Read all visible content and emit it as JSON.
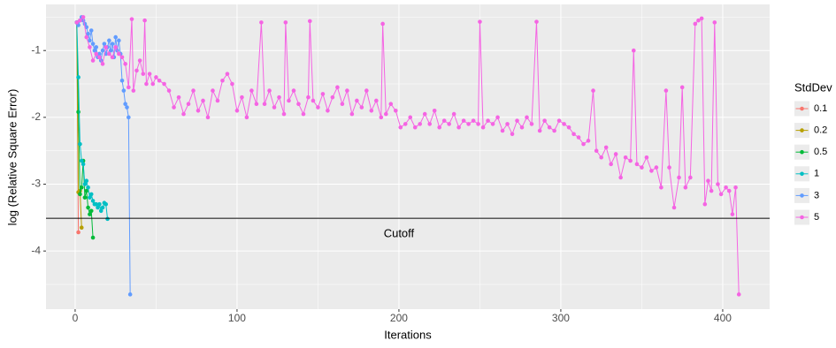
{
  "chart_data": {
    "type": "line",
    "xlabel": "Iterations",
    "ylabel": "log (Relative Square Error)",
    "xlim": [
      -18,
      429
    ],
    "ylim": [
      -4.87,
      -0.31
    ],
    "xticks": [
      0,
      100,
      200,
      300,
      400
    ],
    "yticks": [
      -4,
      -3,
      -2,
      -1
    ],
    "grid": true,
    "minor_grid": true,
    "markers": true,
    "legend_title": "StdDev",
    "legend_position": "right",
    "hline": {
      "y": -3.51,
      "color": "#000000"
    },
    "annotations": [
      {
        "text": "Cutoff",
        "x": 200,
        "y": -3.75
      }
    ],
    "series": [
      {
        "name": "0.1",
        "color": "#F8766D",
        "x": [
          1,
          2
        ],
        "values": [
          -0.58,
          -3.72
        ]
      },
      {
        "name": "0.2",
        "color": "#B79F00",
        "x": [
          1,
          2,
          3,
          4
        ],
        "values": [
          -0.58,
          -3.12,
          -3.1,
          -3.65
        ]
      },
      {
        "name": "0.5",
        "color": "#00BA38",
        "x": [
          1,
          2,
          3,
          4,
          5,
          6,
          7,
          8,
          9,
          10,
          11
        ],
        "values": [
          -0.58,
          -1.92,
          -3.15,
          -3.05,
          -2.65,
          -3.2,
          -3.1,
          -3.35,
          -3.45,
          -3.4,
          -3.8
        ]
      },
      {
        "name": "1",
        "color": "#00BFC4",
        "x": [
          1,
          2,
          3,
          4,
          5,
          6,
          7,
          8,
          9,
          10,
          11,
          12,
          13,
          14,
          15,
          16,
          17,
          18,
          19,
          20
        ],
        "values": [
          -0.58,
          -1.4,
          -2.4,
          -2.65,
          -2.7,
          -3.0,
          -2.95,
          -3.05,
          -3.2,
          -3.15,
          -3.25,
          -3.3,
          -3.3,
          -3.35,
          -3.3,
          -3.4,
          -3.35,
          -3.28,
          -3.3,
          -3.52
        ]
      },
      {
        "name": "3",
        "color": "#619CFF",
        "x": [
          1,
          2,
          3,
          4,
          5,
          6,
          7,
          8,
          9,
          10,
          11,
          12,
          13,
          14,
          15,
          16,
          17,
          18,
          19,
          20,
          21,
          22,
          23,
          24,
          25,
          26,
          27,
          28,
          29,
          30,
          31,
          32,
          33,
          34
        ],
        "values": [
          -0.58,
          -0.62,
          -0.55,
          -0.5,
          -0.55,
          -0.6,
          -0.65,
          -0.75,
          -0.85,
          -0.7,
          -0.9,
          -1.0,
          -0.95,
          -1.1,
          -1.05,
          -1.15,
          -1.0,
          -0.9,
          -1.05,
          -0.95,
          -0.85,
          -1.0,
          -0.9,
          -1.1,
          -0.8,
          -1.0,
          -0.85,
          -1.05,
          -1.45,
          -1.6,
          -1.8,
          -1.85,
          -2.0,
          -4.65
        ]
      },
      {
        "name": "5",
        "color": "#F564E3",
        "x": [
          1,
          3,
          5,
          7,
          9,
          11,
          13,
          15,
          17,
          19,
          21,
          23,
          25,
          27,
          29,
          31,
          33,
          35,
          36,
          38,
          40,
          42,
          43,
          44,
          46,
          48,
          50,
          52,
          55,
          58,
          61,
          64,
          67,
          70,
          73,
          76,
          79,
          82,
          85,
          88,
          91,
          94,
          97,
          100,
          103,
          106,
          109,
          112,
          115,
          117,
          120,
          123,
          126,
          129,
          130,
          132,
          135,
          138,
          141,
          144,
          145,
          147,
          150,
          153,
          156,
          159,
          162,
          165,
          168,
          171,
          174,
          177,
          180,
          183,
          186,
          189,
          190,
          192,
          195,
          198,
          201,
          204,
          207,
          210,
          213,
          216,
          219,
          222,
          225,
          228,
          231,
          234,
          237,
          240,
          243,
          246,
          249,
          250,
          252,
          255,
          258,
          261,
          264,
          267,
          270,
          273,
          276,
          279,
          282,
          285,
          287,
          290,
          293,
          296,
          299,
          302,
          305,
          308,
          311,
          314,
          317,
          320,
          322,
          325,
          328,
          331,
          334,
          337,
          340,
          343,
          345,
          347,
          350,
          353,
          356,
          359,
          362,
          365,
          367,
          370,
          373,
          375,
          377,
          380,
          383,
          385,
          387,
          389,
          391,
          393,
          395,
          397,
          399,
          402,
          404,
          406,
          408,
          410
        ],
        "values": [
          -0.58,
          -0.55,
          -0.5,
          -0.8,
          -0.95,
          -1.15,
          -1.05,
          -1.1,
          -1.2,
          -0.95,
          -1.05,
          -1.1,
          -0.95,
          -1.05,
          -1.1,
          -1.2,
          -1.55,
          -0.53,
          -1.6,
          -1.3,
          -1.15,
          -1.35,
          -0.55,
          -1.5,
          -1.35,
          -1.5,
          -1.4,
          -1.45,
          -1.5,
          -1.6,
          -1.85,
          -1.7,
          -1.95,
          -1.8,
          -1.6,
          -1.9,
          -1.75,
          -2.0,
          -1.6,
          -1.75,
          -1.45,
          -1.35,
          -1.5,
          -1.9,
          -1.7,
          -2.0,
          -1.6,
          -1.8,
          -0.58,
          -1.8,
          -1.6,
          -1.85,
          -1.7,
          -1.95,
          -0.58,
          -1.75,
          -1.6,
          -1.8,
          -1.95,
          -1.7,
          -0.56,
          -1.75,
          -1.85,
          -1.65,
          -1.9,
          -1.7,
          -1.55,
          -1.8,
          -1.6,
          -1.95,
          -1.75,
          -1.85,
          -1.6,
          -1.9,
          -1.75,
          -2.0,
          -0.6,
          -1.95,
          -1.8,
          -1.9,
          -2.15,
          -2.1,
          -2.0,
          -2.15,
          -2.1,
          -1.95,
          -2.1,
          -1.9,
          -2.15,
          -2.05,
          -2.1,
          -1.95,
          -2.15,
          -2.05,
          -2.1,
          -2.05,
          -2.1,
          -0.57,
          -2.15,
          -2.05,
          -2.1,
          -2.0,
          -2.2,
          -2.1,
          -2.25,
          -2.05,
          -2.15,
          -2.0,
          -2.1,
          -0.57,
          -2.2,
          -2.05,
          -2.15,
          -2.2,
          -2.05,
          -2.1,
          -2.15,
          -2.25,
          -2.3,
          -2.4,
          -2.35,
          -1.6,
          -2.5,
          -2.6,
          -2.45,
          -2.7,
          -2.55,
          -2.9,
          -2.6,
          -2.65,
          -1.0,
          -2.7,
          -2.75,
          -2.6,
          -2.8,
          -2.75,
          -3.05,
          -1.6,
          -2.75,
          -3.35,
          -2.9,
          -1.55,
          -3.05,
          -2.9,
          -0.6,
          -0.55,
          -0.52,
          -3.3,
          -2.95,
          -3.1,
          -0.58,
          -3.0,
          -3.15,
          -3.05,
          -3.1,
          -3.45,
          -3.05,
          -4.65
        ]
      }
    ]
  }
}
